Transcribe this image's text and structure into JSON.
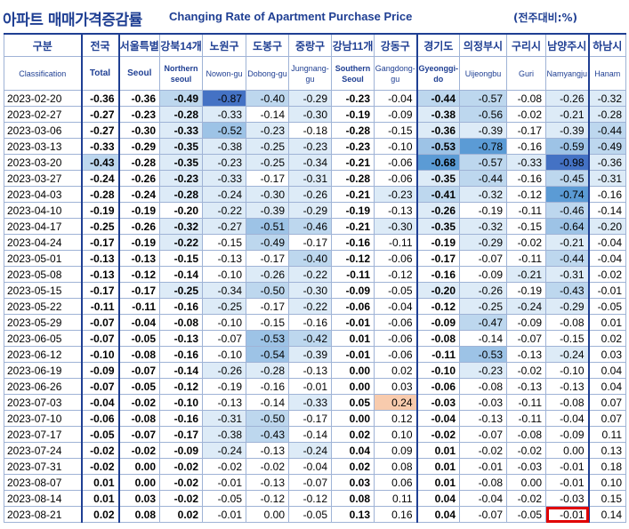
{
  "title": {
    "kr": "아파트 매매가격증감률",
    "en": "Changing Rate of Apartment Purchase Price",
    "unit": "(전주대비:%)"
  },
  "columns": [
    {
      "kr": "구분",
      "en": "Classification"
    },
    {
      "kr": "전국",
      "en": "Total"
    },
    {
      "kr": "서울특별",
      "en": "Seoul"
    },
    {
      "kr": "강북14개",
      "en": "Northern seoul"
    },
    {
      "kr": "노원구",
      "en": "Nowon-gu"
    },
    {
      "kr": "도봉구",
      "en": "Dobong-gu"
    },
    {
      "kr": "중랑구",
      "en": "Jungnang-gu"
    },
    {
      "kr": "강남11개",
      "en": "Southern Seoul"
    },
    {
      "kr": "강동구",
      "en": "Gangdong-gu"
    },
    {
      "kr": "경기도",
      "en": "Gyeonggi-do"
    },
    {
      "kr": "의정부시",
      "en": "Uijeongbu"
    },
    {
      "kr": "구리시",
      "en": "Guri"
    },
    {
      "kr": "남양주시",
      "en": "Namyangju"
    },
    {
      "kr": "하남시",
      "en": "Hanam"
    }
  ],
  "rows": [
    {
      "date": "2023-02-20",
      "values": [
        "-0.36",
        "-0.36",
        "-0.49",
        "-0.87",
        "-0.40",
        "-0.29",
        "-0.23",
        "-0.04",
        "-0.44",
        "-0.57",
        "-0.08",
        "-0.26",
        "-0.32"
      ],
      "shade": [
        0,
        0,
        2,
        5,
        2,
        1,
        0,
        0,
        2,
        2,
        0,
        1,
        1
      ]
    },
    {
      "date": "2023-02-27",
      "values": [
        "-0.27",
        "-0.23",
        "-0.28",
        "-0.33",
        "-0.14",
        "-0.30",
        "-0.19",
        "-0.09",
        "-0.38",
        "-0.56",
        "-0.02",
        "-0.21",
        "-0.28"
      ],
      "shade": [
        0,
        0,
        1,
        1,
        0,
        1,
        0,
        0,
        1,
        2,
        0,
        1,
        1
      ]
    },
    {
      "date": "2023-03-06",
      "values": [
        "-0.27",
        "-0.30",
        "-0.33",
        "-0.52",
        "-0.23",
        "-0.18",
        "-0.28",
        "-0.15",
        "-0.36",
        "-0.39",
        "-0.17",
        "-0.39",
        "-0.44"
      ],
      "shade": [
        0,
        0,
        1,
        3,
        1,
        0,
        0,
        0,
        1,
        1,
        0,
        1,
        2
      ]
    },
    {
      "date": "2023-03-13",
      "values": [
        "-0.33",
        "-0.29",
        "-0.35",
        "-0.38",
        "-0.25",
        "-0.23",
        "-0.23",
        "-0.10",
        "-0.53",
        "-0.78",
        "-0.16",
        "-0.59",
        "-0.49"
      ],
      "shade": [
        0,
        0,
        1,
        1,
        1,
        1,
        0,
        0,
        3,
        4,
        0,
        3,
        2
      ]
    },
    {
      "date": "2023-03-20",
      "values": [
        "-0.43",
        "-0.28",
        "-0.35",
        "-0.23",
        "-0.25",
        "-0.34",
        "-0.21",
        "-0.06",
        "-0.68",
        "-0.57",
        "-0.33",
        "-0.98",
        "-0.36"
      ],
      "shade": [
        2,
        0,
        1,
        1,
        1,
        1,
        0,
        0,
        4,
        2,
        1,
        5,
        1
      ]
    },
    {
      "date": "2023-03-27",
      "values": [
        "-0.24",
        "-0.26",
        "-0.23",
        "-0.33",
        "-0.17",
        "-0.31",
        "-0.28",
        "-0.06",
        "-0.35",
        "-0.44",
        "-0.16",
        "-0.45",
        "-0.31"
      ],
      "shade": [
        0,
        0,
        1,
        1,
        0,
        1,
        0,
        0,
        1,
        2,
        0,
        2,
        1
      ]
    },
    {
      "date": "2023-04-03",
      "values": [
        "-0.28",
        "-0.24",
        "-0.28",
        "-0.24",
        "-0.30",
        "-0.26",
        "-0.21",
        "-0.23",
        "-0.41",
        "-0.32",
        "-0.12",
        "-0.74",
        "-0.16"
      ],
      "shade": [
        0,
        0,
        1,
        1,
        1,
        1,
        0,
        1,
        2,
        1,
        0,
        4,
        0
      ]
    },
    {
      "date": "2023-04-10",
      "values": [
        "-0.19",
        "-0.19",
        "-0.20",
        "-0.22",
        "-0.39",
        "-0.29",
        "-0.19",
        "-0.13",
        "-0.26",
        "-0.19",
        "-0.11",
        "-0.46",
        "-0.14"
      ],
      "shade": [
        0,
        0,
        0,
        1,
        1,
        1,
        0,
        0,
        1,
        0,
        0,
        2,
        0
      ]
    },
    {
      "date": "2023-04-17",
      "values": [
        "-0.25",
        "-0.26",
        "-0.32",
        "-0.27",
        "-0.51",
        "-0.46",
        "-0.21",
        "-0.30",
        "-0.35",
        "-0.32",
        "-0.15",
        "-0.64",
        "-0.20"
      ],
      "shade": [
        0,
        0,
        1,
        1,
        3,
        2,
        0,
        1,
        1,
        1,
        0,
        3,
        1
      ]
    },
    {
      "date": "2023-04-24",
      "values": [
        "-0.17",
        "-0.19",
        "-0.22",
        "-0.15",
        "-0.49",
        "-0.17",
        "-0.16",
        "-0.11",
        "-0.19",
        "-0.29",
        "-0.02",
        "-0.21",
        "-0.04"
      ],
      "shade": [
        0,
        0,
        1,
        0,
        2,
        0,
        0,
        0,
        0,
        1,
        0,
        1,
        0
      ]
    },
    {
      "date": "2023-05-01",
      "values": [
        "-0.13",
        "-0.13",
        "-0.15",
        "-0.13",
        "-0.17",
        "-0.40",
        "-0.12",
        "-0.06",
        "-0.17",
        "-0.07",
        "-0.11",
        "-0.44",
        "-0.04"
      ],
      "shade": [
        0,
        0,
        0,
        0,
        0,
        2,
        0,
        0,
        0,
        0,
        0,
        2,
        0
      ]
    },
    {
      "date": "2023-05-08",
      "values": [
        "-0.13",
        "-0.12",
        "-0.14",
        "-0.10",
        "-0.26",
        "-0.22",
        "-0.11",
        "-0.12",
        "-0.16",
        "-0.09",
        "-0.21",
        "-0.31",
        "-0.02"
      ],
      "shade": [
        0,
        0,
        0,
        0,
        1,
        1,
        0,
        0,
        0,
        0,
        1,
        1,
        0
      ]
    },
    {
      "date": "2023-05-15",
      "values": [
        "-0.17",
        "-0.17",
        "-0.25",
        "-0.34",
        "-0.50",
        "-0.30",
        "-0.09",
        "-0.05",
        "-0.20",
        "-0.26",
        "-0.19",
        "-0.43",
        "-0.01"
      ],
      "shade": [
        0,
        0,
        1,
        1,
        2,
        1,
        0,
        0,
        1,
        1,
        0,
        2,
        0
      ]
    },
    {
      "date": "2023-05-22",
      "values": [
        "-0.11",
        "-0.11",
        "-0.16",
        "-0.25",
        "-0.17",
        "-0.22",
        "-0.06",
        "-0.04",
        "-0.12",
        "-0.25",
        "-0.24",
        "-0.29",
        "-0.05"
      ],
      "shade": [
        0,
        0,
        0,
        1,
        0,
        1,
        0,
        0,
        0,
        1,
        1,
        1,
        0
      ]
    },
    {
      "date": "2023-05-29",
      "values": [
        "-0.07",
        "-0.04",
        "-0.08",
        "-0.10",
        "-0.15",
        "-0.16",
        "-0.01",
        "-0.06",
        "-0.09",
        "-0.47",
        "-0.09",
        "-0.08",
        "0.01"
      ],
      "shade": [
        0,
        0,
        0,
        0,
        0,
        0,
        0,
        0,
        0,
        2,
        0,
        0,
        0
      ]
    },
    {
      "date": "2023-06-05",
      "values": [
        "-0.07",
        "-0.05",
        "-0.13",
        "-0.07",
        "-0.53",
        "-0.42",
        "0.01",
        "-0.06",
        "-0.08",
        "-0.14",
        "-0.07",
        "-0.15",
        "0.02"
      ],
      "shade": [
        0,
        0,
        0,
        0,
        3,
        2,
        0,
        0,
        0,
        0,
        0,
        0,
        0
      ]
    },
    {
      "date": "2023-06-12",
      "values": [
        "-0.10",
        "-0.08",
        "-0.16",
        "-0.10",
        "-0.54",
        "-0.39",
        "-0.01",
        "-0.06",
        "-0.11",
        "-0.53",
        "-0.13",
        "-0.24",
        "0.03"
      ],
      "shade": [
        0,
        0,
        0,
        0,
        3,
        1,
        0,
        0,
        0,
        3,
        0,
        1,
        0
      ]
    },
    {
      "date": "2023-06-19",
      "values": [
        "-0.09",
        "-0.07",
        "-0.14",
        "-0.26",
        "-0.28",
        "-0.13",
        "0.00",
        "0.02",
        "-0.10",
        "-0.23",
        "-0.02",
        "-0.10",
        "0.04"
      ],
      "shade": [
        0,
        0,
        0,
        1,
        1,
        0,
        0,
        0,
        0,
        1,
        0,
        0,
        0
      ]
    },
    {
      "date": "2023-06-26",
      "values": [
        "-0.07",
        "-0.05",
        "-0.12",
        "-0.19",
        "-0.16",
        "-0.01",
        "0.00",
        "0.03",
        "-0.06",
        "-0.08",
        "-0.13",
        "-0.13",
        "0.04"
      ],
      "shade": [
        0,
        0,
        0,
        0,
        0,
        0,
        0,
        0,
        0,
        0,
        0,
        0,
        0
      ]
    },
    {
      "date": "2023-07-03",
      "values": [
        "-0.04",
        "-0.02",
        "-0.10",
        "-0.13",
        "-0.14",
        "-0.33",
        "0.05",
        "0.24",
        "-0.03",
        "-0.03",
        "-0.11",
        "-0.08",
        "0.07"
      ],
      "shade": [
        0,
        0,
        0,
        0,
        0,
        1,
        0,
        6,
        0,
        0,
        0,
        0,
        0
      ]
    },
    {
      "date": "2023-07-10",
      "values": [
        "-0.06",
        "-0.08",
        "-0.16",
        "-0.31",
        "-0.50",
        "-0.17",
        "0.00",
        "0.12",
        "-0.04",
        "-0.13",
        "-0.11",
        "-0.04",
        "0.07"
      ],
      "shade": [
        0,
        0,
        0,
        1,
        2,
        0,
        0,
        0,
        0,
        0,
        0,
        0,
        0
      ]
    },
    {
      "date": "2023-07-17",
      "values": [
        "-0.05",
        "-0.07",
        "-0.17",
        "-0.38",
        "-0.43",
        "-0.14",
        "0.02",
        "0.10",
        "-0.02",
        "-0.07",
        "-0.08",
        "-0.09",
        "0.11"
      ],
      "shade": [
        0,
        0,
        0,
        1,
        2,
        0,
        0,
        0,
        0,
        0,
        0,
        0,
        0
      ]
    },
    {
      "date": "2023-07-24",
      "values": [
        "-0.02",
        "-0.02",
        "-0.09",
        "-0.24",
        "-0.13",
        "-0.24",
        "0.04",
        "0.09",
        "0.01",
        "-0.02",
        "-0.02",
        "0.00",
        "0.13"
      ],
      "shade": [
        0,
        0,
        0,
        1,
        0,
        1,
        0,
        0,
        0,
        0,
        0,
        0,
        0
      ]
    },
    {
      "date": "2023-07-31",
      "values": [
        "-0.02",
        "0.00",
        "-0.02",
        "-0.02",
        "-0.02",
        "-0.04",
        "0.02",
        "0.08",
        "0.01",
        "-0.01",
        "-0.03",
        "-0.01",
        "0.18"
      ],
      "shade": [
        0,
        0,
        0,
        0,
        0,
        0,
        0,
        0,
        0,
        0,
        0,
        0,
        0
      ]
    },
    {
      "date": "2023-08-07",
      "values": [
        "0.01",
        "0.00",
        "-0.02",
        "-0.01",
        "-0.13",
        "-0.07",
        "0.03",
        "0.06",
        "0.01",
        "-0.08",
        "0.00",
        "-0.01",
        "0.10"
      ],
      "shade": [
        0,
        0,
        0,
        0,
        0,
        0,
        0,
        0,
        0,
        0,
        0,
        0,
        0
      ]
    },
    {
      "date": "2023-08-14",
      "values": [
        "0.01",
        "0.03",
        "-0.02",
        "-0.05",
        "-0.12",
        "-0.12",
        "0.08",
        "0.11",
        "0.04",
        "-0.04",
        "-0.02",
        "-0.03",
        "0.15"
      ],
      "shade": [
        0,
        0,
        0,
        0,
        0,
        0,
        0,
        0,
        0,
        0,
        0,
        0,
        0
      ]
    },
    {
      "date": "2023-08-21",
      "values": [
        "0.02",
        "0.08",
        "0.02",
        "-0.01",
        "0.00",
        "-0.05",
        "0.13",
        "0.16",
        "0.04",
        "-0.07",
        "-0.05",
        "-0.01",
        "0.14"
      ],
      "shade": [
        0,
        0,
        0,
        0,
        0,
        0,
        0,
        0,
        0,
        0,
        0,
        0,
        0
      ]
    }
  ],
  "highlight": {
    "row": "2023-08-21",
    "column": "남양주시"
  },
  "shade_colors": {
    "0": "#ffffff",
    "1": "#ddebf7",
    "2": "#bdd7ee",
    "3": "#9dc3e6",
    "4": "#5b9bd5",
    "5": "#4472c4",
    "6": "#f8cbad"
  }
}
